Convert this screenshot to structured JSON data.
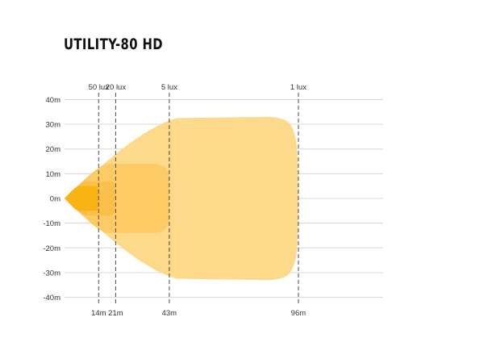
{
  "chart_data": {
    "type": "area",
    "title": "UTILITY-80 HD",
    "xlabel": "",
    "ylabel": "",
    "ylim": [
      -40,
      40
    ],
    "xlim": [
      0,
      130
    ],
    "y_ticks": [
      "40m",
      "30m",
      "20m",
      "10m",
      "0m",
      "-10m",
      "-20m",
      "-30m",
      "-40m"
    ],
    "y_tick_values": [
      40,
      30,
      20,
      10,
      0,
      -10,
      -20,
      -30,
      -40
    ],
    "grid": true,
    "series": [
      {
        "name": "1 lux",
        "distance": 96,
        "distance_label": "96m",
        "half_width": 33,
        "color": "#fdd98b"
      },
      {
        "name": "5 lux",
        "distance": 43,
        "distance_label": "43m",
        "half_width": 14,
        "color": "#fccb66"
      },
      {
        "name": "20 lux",
        "distance": 21,
        "distance_label": "21m",
        "half_width": 7,
        "color": "#fbc04a"
      },
      {
        "name": "50 lux",
        "distance": 14,
        "distance_label": "14m",
        "half_width": 5,
        "color": "#f9b414"
      }
    ]
  }
}
